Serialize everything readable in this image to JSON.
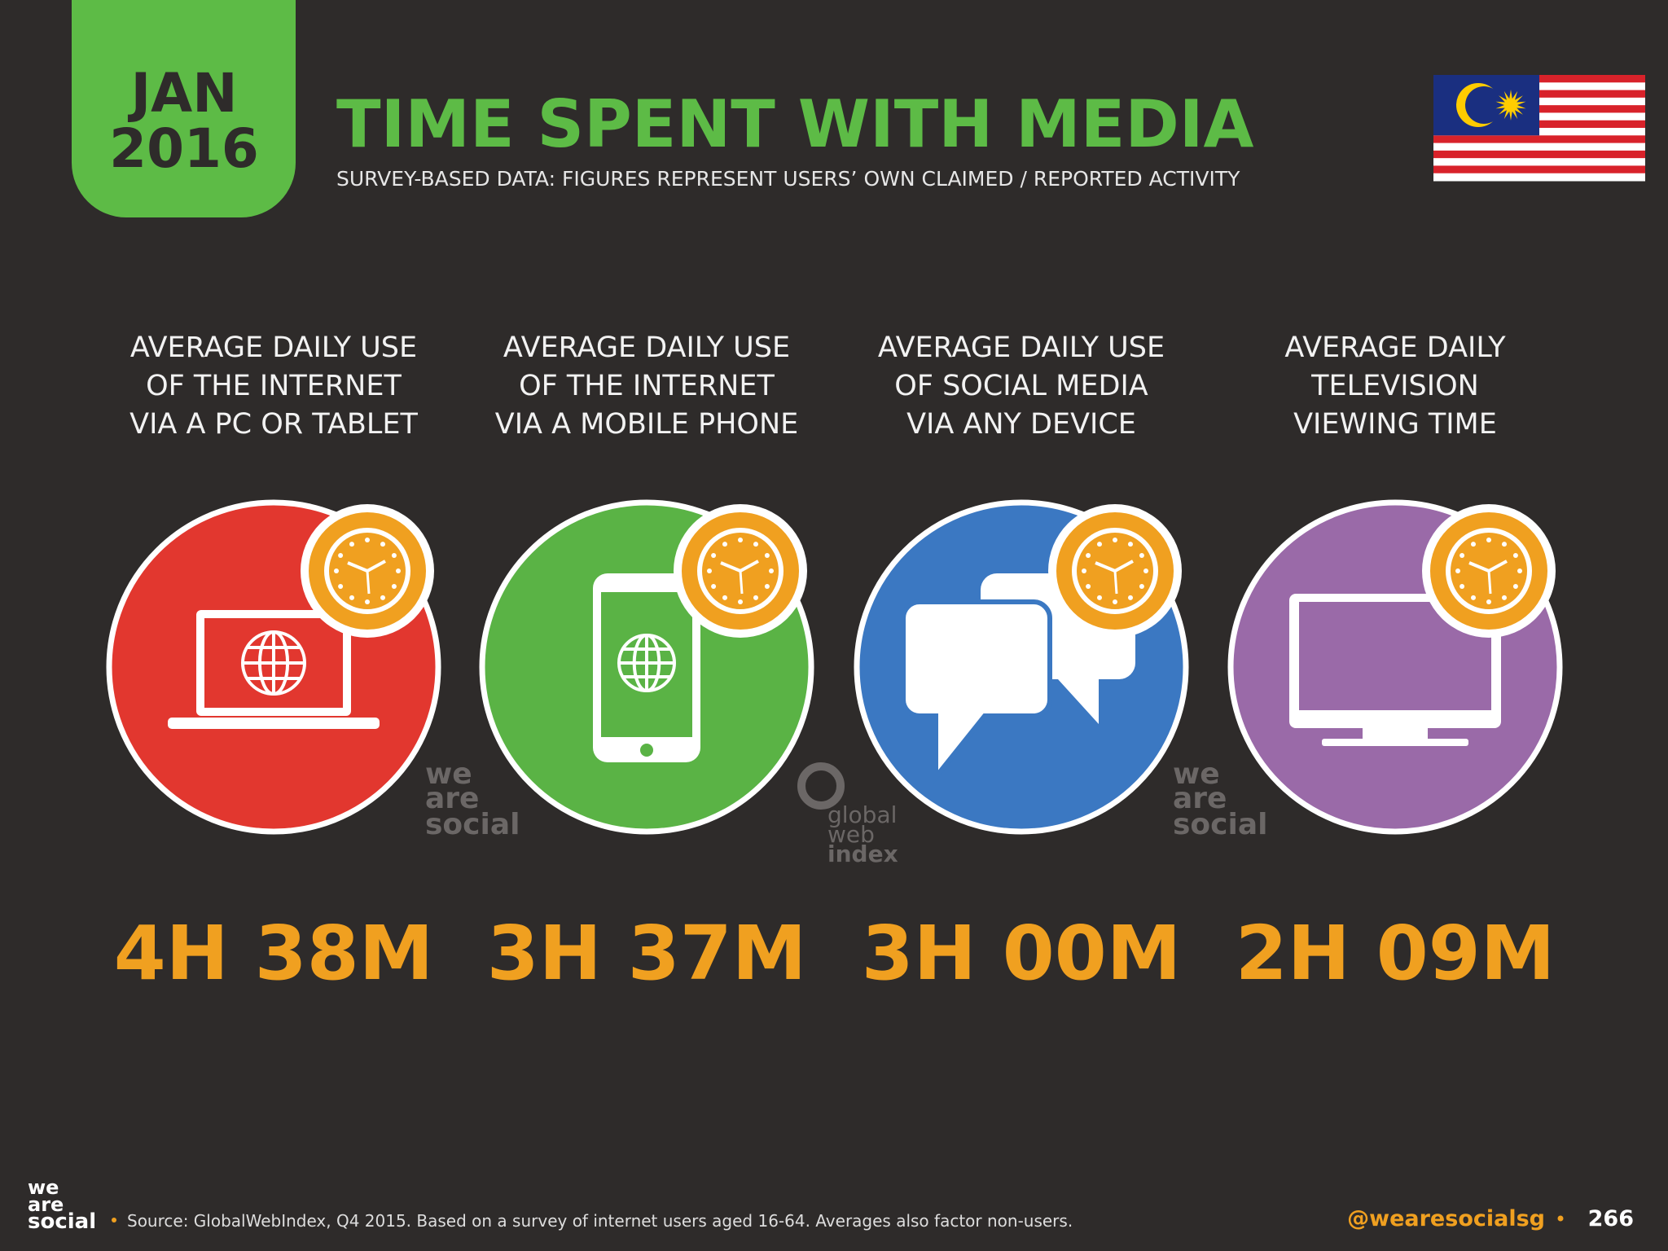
{
  "header": {
    "date": [
      "JAN",
      "2016"
    ],
    "title": "TIME SPENT WITH MEDIA",
    "subtitle": "SURVEY-BASED DATA: FIGURES REPRESENT USERS’ OWN CLAIMED / REPORTED ACTIVITY"
  },
  "cards": [
    {
      "label": [
        "AVERAGE DAILY USE",
        "OF THE INTERNET",
        "VIA A PC OR TABLET"
      ],
      "value": "4H 38M"
    },
    {
      "label": [
        "AVERAGE DAILY USE",
        "OF THE INTERNET",
        "VIA A MOBILE PHONE"
      ],
      "value": "3H 37M"
    },
    {
      "label": [
        "AVERAGE DAILY USE",
        "OF SOCIAL MEDIA",
        "VIA ANY DEVICE"
      ],
      "value": "3H 00M"
    },
    {
      "label": [
        "AVERAGE DAILY",
        "TELEVISION",
        "VIEWING TIME"
      ],
      "value": "2H 09M"
    }
  ],
  "watermarks": {
    "we_are_social": [
      "we",
      "are",
      "social"
    ],
    "global_web_index": [
      "global",
      "web",
      "index"
    ]
  },
  "footer": {
    "logo": [
      "we",
      "are",
      "social"
    ],
    "source": "Source: GlobalWebIndex, Q4 2015. Based on a survey of internet users aged 16-64. Averages also factor non-users.",
    "handle": "@wearesocialsg",
    "page": "266"
  }
}
